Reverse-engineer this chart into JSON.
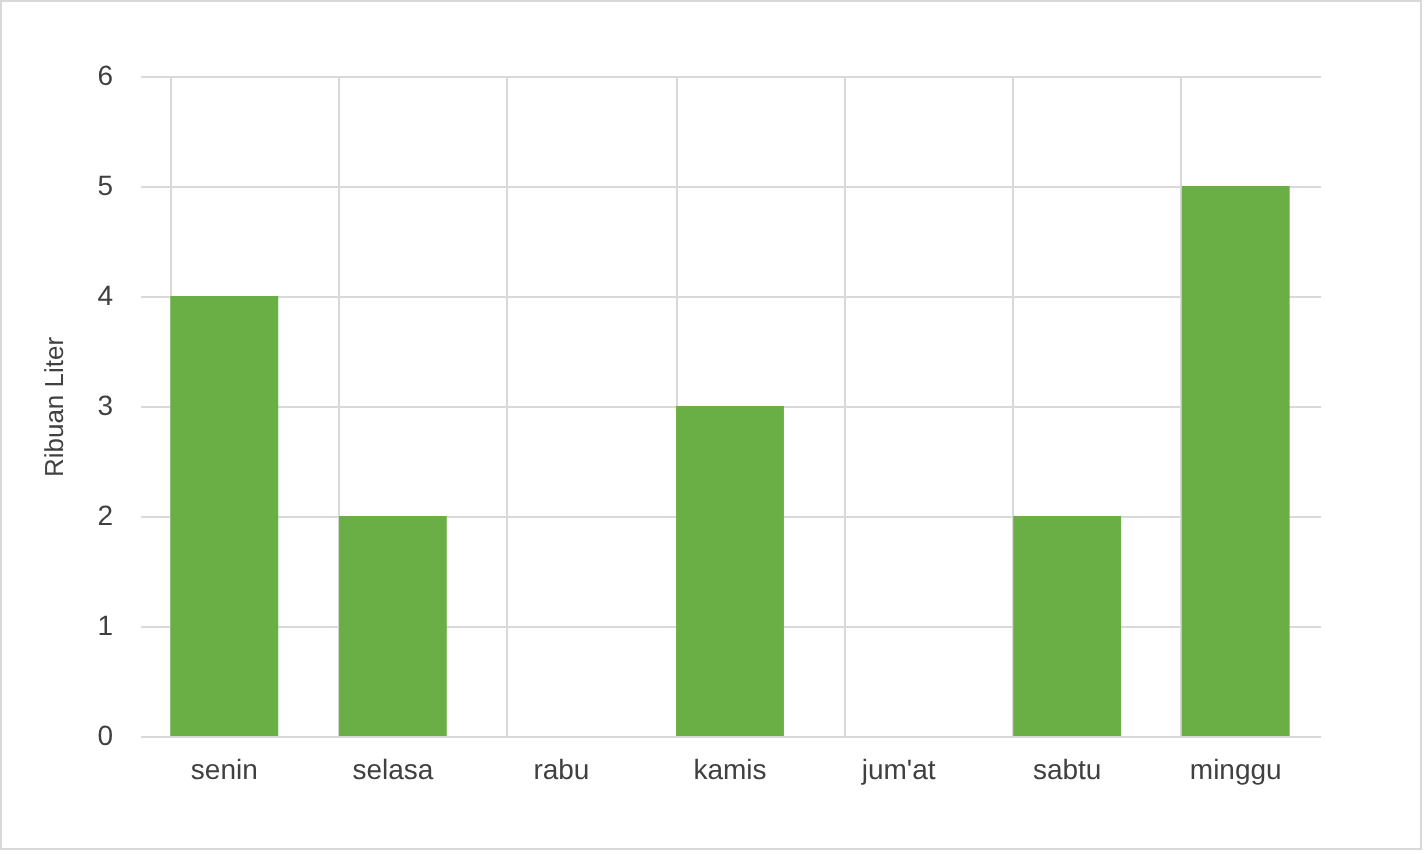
{
  "chart_data": {
    "type": "bar",
    "ylabel": "Ribuan Liter",
    "categories": [
      "senin",
      "selasa",
      "rabu",
      "kamis",
      "jum'at",
      "sabtu",
      "minggu"
    ],
    "values": [
      4,
      2,
      0,
      3,
      0,
      2,
      5
    ],
    "color": "#6aaf45",
    "ylim": [
      0,
      6
    ],
    "yticks": [
      0,
      1,
      2,
      3,
      4,
      5,
      6
    ],
    "grid": true
  }
}
